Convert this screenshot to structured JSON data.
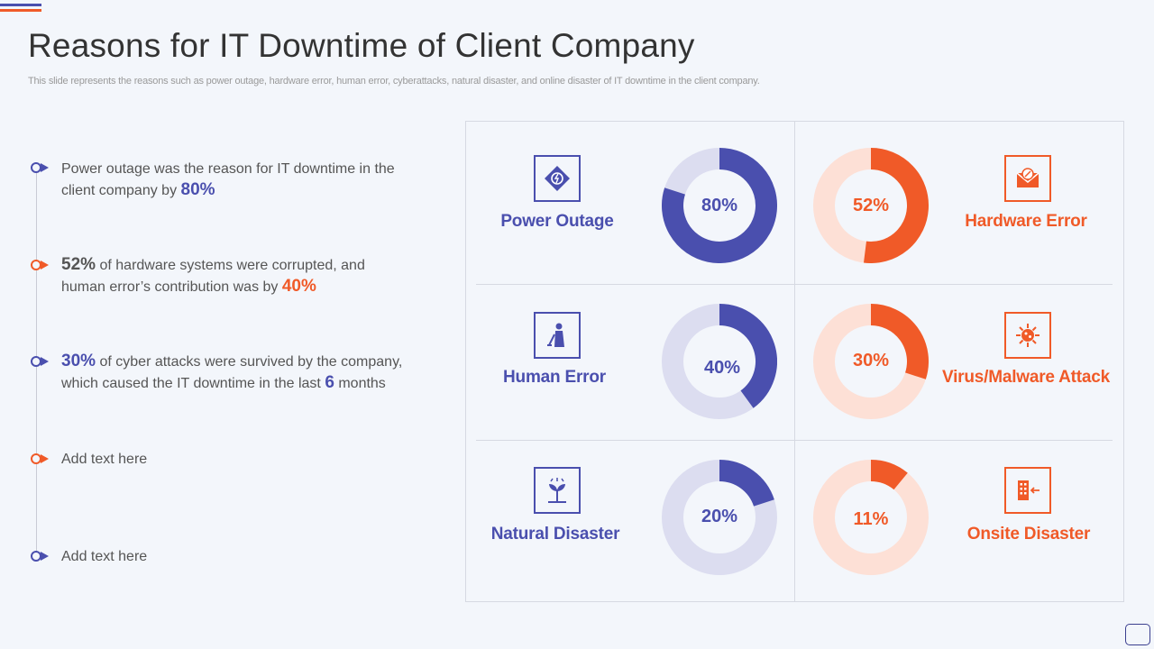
{
  "header": {
    "title": "Reasons for IT Downtime of Client Company",
    "subtitle": "This slide represents the reasons such as power outage, hardware error, human error, cyberattacks, natural disaster, and online disaster of IT downtime in the client company."
  },
  "points": [
    {
      "pre": "Power outage was the reason for IT downtime in the client company by ",
      "v1": "80%"
    },
    {
      "v1": "52%",
      "mid": " of hardware systems were corrupted, and human error’s contribution was by ",
      "v2": "40%"
    },
    {
      "v1": "30%",
      "mid": " of cyber attacks were survived by the company, which caused the IT downtime in the last ",
      "v2": "6",
      "post": " months"
    },
    {
      "text": "Add text here"
    },
    {
      "text": "Add text here"
    }
  ],
  "colors": {
    "blue": "#4a4fae",
    "blue_light": "#dcddf0",
    "orange": "#f05a28",
    "orange_light": "#fde0d6"
  },
  "chart_data": [
    {
      "type": "pie",
      "title": "Power Outage",
      "value_label": "80%",
      "values": [
        80,
        20
      ],
      "color": "blue",
      "icon": "power-outage-icon"
    },
    {
      "type": "pie",
      "title": "Hardware Error",
      "value_label": "52%",
      "values": [
        52,
        48
      ],
      "color": "orange",
      "icon": "hardware-error-icon"
    },
    {
      "type": "pie",
      "title": "Human Error",
      "value_label": "40%",
      "values": [
        40,
        60
      ],
      "color": "blue",
      "icon": "human-error-icon"
    },
    {
      "type": "pie",
      "title": "Virus/Malware Attack",
      "value_label": "30%",
      "values": [
        30,
        70
      ],
      "color": "orange",
      "icon": "virus-icon"
    },
    {
      "type": "pie",
      "title": "Natural Disaster",
      "value_label": "20%",
      "values": [
        20,
        80
      ],
      "color": "blue",
      "icon": "natural-disaster-icon"
    },
    {
      "type": "pie",
      "title": "Onsite Disaster",
      "value_label": "11%",
      "values": [
        11,
        89
      ],
      "color": "orange",
      "icon": "onsite-disaster-icon"
    }
  ]
}
